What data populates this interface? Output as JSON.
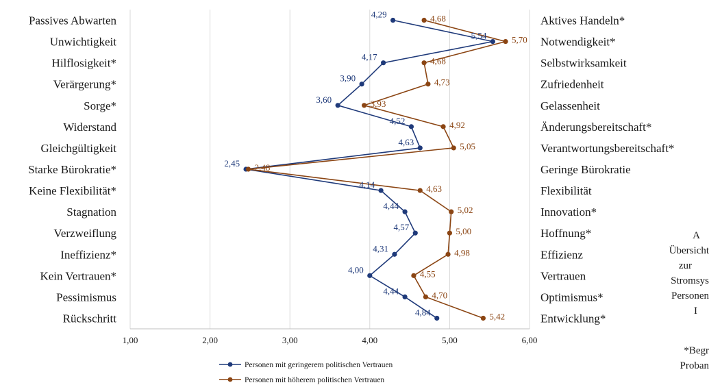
{
  "chart_data": {
    "type": "line",
    "orientation": "horizontal-profile",
    "left_labels": [
      "Passives Abwarten",
      "Unwichtigkeit",
      "Hilflosigkeit*",
      "Verärgerung*",
      "Sorge*",
      "Widerstand",
      "Gleichgültigkeit",
      "Starke Bürokratie*",
      "Keine Flexibilität*",
      "Stagnation",
      "Verzweiflung",
      "Ineffizienz*",
      "Kein Vertrauen*",
      "Pessimismus",
      "Rückschritt"
    ],
    "right_labels": [
      "Aktives Handeln*",
      "Notwendigkeit*",
      "Selbstwirksamkeit",
      "Zufriedenheit",
      "Gelassenheit",
      "Änderungsbereitschaft*",
      "Verantwortungsbereitschaft*",
      "Geringe Bürokratie",
      "Flexibilität",
      "Innovation*",
      "Hoffnung*",
      "Effizienz",
      "Vertrauen",
      "Optimismus*",
      "Entwicklung*"
    ],
    "x_ticks": [
      "1,00",
      "2,00",
      "3,00",
      "4,00",
      "5,00",
      "6,00"
    ],
    "xlim": [
      1,
      6
    ],
    "grid": true,
    "legend_position": "bottom",
    "series": [
      {
        "name": "Personen mit geringerem politischen Vertrauen",
        "color": "#1f3a7a",
        "values": [
          4.29,
          5.54,
          4.17,
          3.9,
          3.6,
          4.52,
          4.63,
          2.45,
          4.14,
          4.44,
          4.57,
          4.31,
          4.0,
          4.44,
          4.84
        ],
        "labels": [
          "4,29",
          "5,54",
          "4,17",
          "3,90",
          "3,60",
          "4,52",
          "4,63",
          "2,45",
          "4,14",
          "4,44",
          "4,57",
          "4,31",
          "4,00",
          "4,44",
          "4,84"
        ]
      },
      {
        "name": "Personen mit höherem politischen Vertrauen",
        "color": "#8b4513",
        "values": [
          4.68,
          5.7,
          4.68,
          4.73,
          3.93,
          4.92,
          5.05,
          2.48,
          4.63,
          5.02,
          5.0,
          4.98,
          4.55,
          4.7,
          5.42
        ],
        "labels": [
          "4,68",
          "5,70",
          "4,68",
          "4,73",
          "3,93",
          "4,92",
          "5,05",
          "2,48",
          "4,63",
          "5,02",
          "5,00",
          "4,98",
          "4,55",
          "4,70",
          "5,42"
        ]
      }
    ],
    "side_text": [
      "A",
      "Übersicht",
      "zur",
      "Stromsys",
      "Personen",
      "I",
      "",
      "*Begr",
      "Proban"
    ]
  }
}
